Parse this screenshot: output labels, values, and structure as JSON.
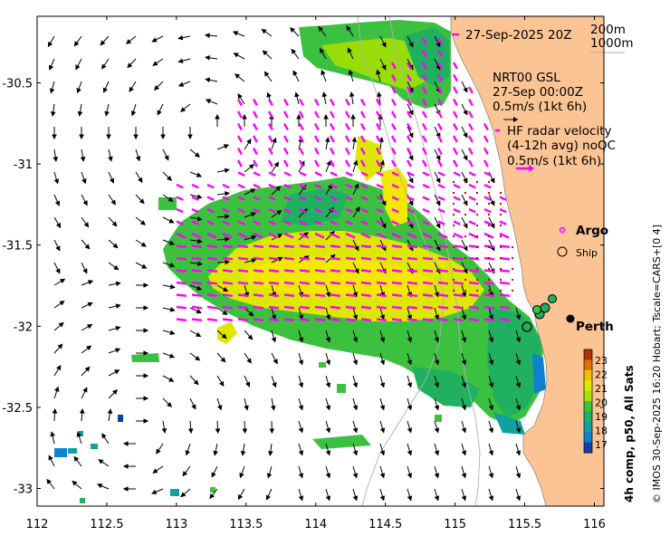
{
  "map": {
    "lon_ticks": [
      "112",
      "112.5",
      "113",
      "113.5",
      "114",
      "114.5",
      "115",
      "115.5",
      "116"
    ],
    "lat_ticks": [
      "-30.5",
      "-31",
      "-31.5",
      "-32",
      "-32.5",
      "-33"
    ],
    "lon_range": [
      112,
      116.1
    ],
    "lat_range": [
      -33.1,
      -30.0
    ]
  },
  "annotations": {
    "timestamp": "27-Sep-2025 20Z",
    "isobath_200": "200m",
    "isobath_1000": "1000m",
    "model_name": "NRT00 GSL",
    "model_time": "27-Sep 00:00Z",
    "model_scale": "0.5m/s (1kt 6h)",
    "radar_line1": "HF radar velocity",
    "radar_line2": "(4-12h avg) noQC",
    "radar_scale": "0.5m/s (1kt 6h)",
    "argo_label": "Argo",
    "ship_label": "Ship",
    "city_label": "Perth"
  },
  "colorbar": {
    "labels": [
      "23",
      "22",
      "21",
      "20",
      "19",
      "18",
      "17"
    ],
    "title": "4h comp, p50, All Sats",
    "colors": [
      "#b03000",
      "#e07000",
      "#f2c000",
      "#dce800",
      "#a8e000",
      "#3cc040",
      "#20b060",
      "#10a0a0",
      "#1080d0",
      "#1040b0"
    ]
  },
  "credit": "© IMOS 30-Sep-2025 16:20 Hobart; Tscale=CARS+[0 4]",
  "colors": {
    "land": "#fbc494",
    "hf_radar": "#ff00ff",
    "model_arrow": "#000000",
    "observations": "#e00000"
  }
}
